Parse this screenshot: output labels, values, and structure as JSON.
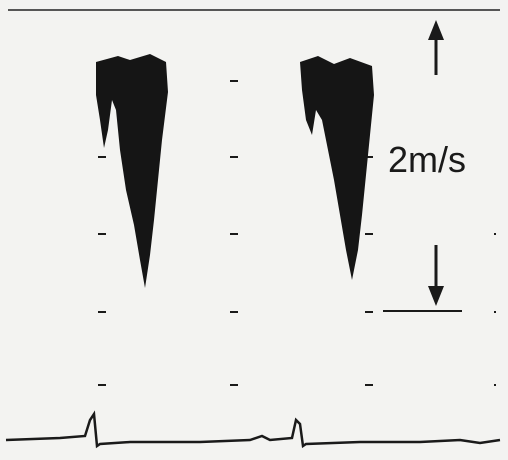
{
  "scale_label": "2m/s"
}
